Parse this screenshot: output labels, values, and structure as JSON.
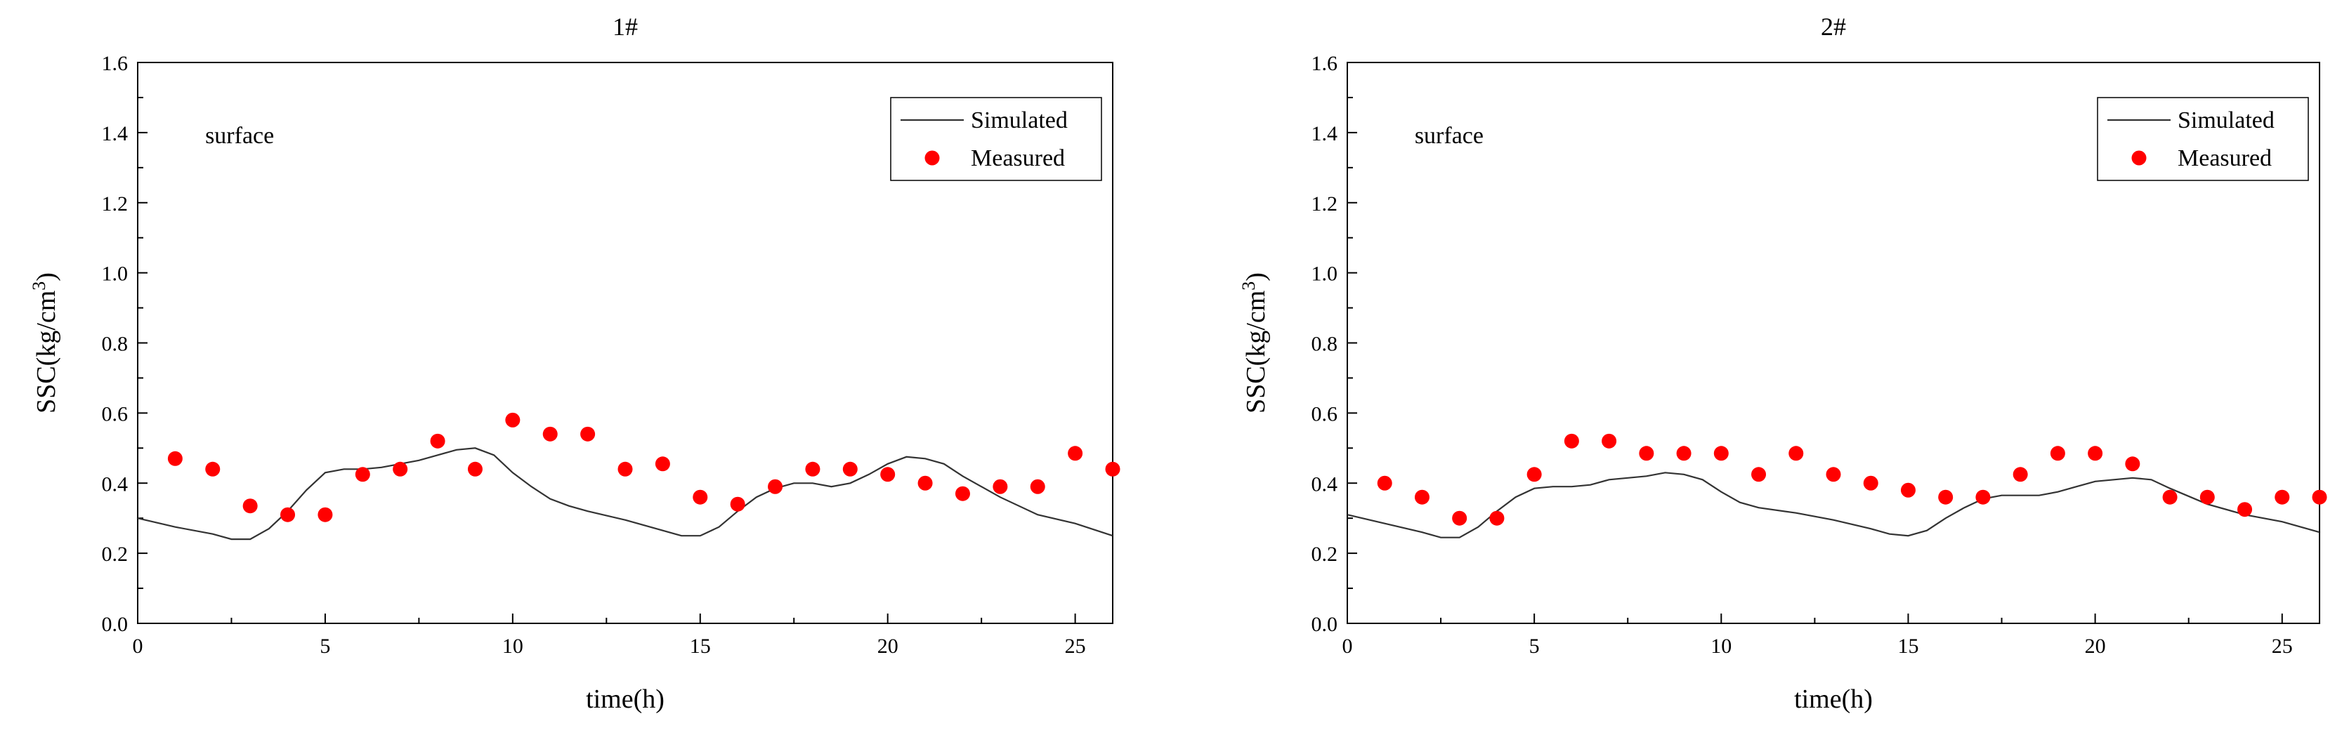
{
  "chart_data": [
    {
      "type": "line",
      "title": "1#",
      "xlabel": "time(h)",
      "ylabel_base": "SSC(kg/cm",
      "ylabel_sup": "3",
      "ylabel_tail": ")",
      "annotation": "surface",
      "xlim": [
        0,
        26
      ],
      "ylim": [
        0,
        1.6
      ],
      "xticks": [
        0,
        5,
        10,
        15,
        20,
        25
      ],
      "xtick_labels": [
        "0",
        "5",
        "10",
        "15",
        "20",
        "25"
      ],
      "yticks": [
        0,
        0.2,
        0.4,
        0.6,
        0.8,
        1.0,
        1.2,
        1.4,
        1.6
      ],
      "ytick_labels": [
        "0.0",
        "0.2",
        "0.4",
        "0.6",
        "0.8",
        "1.0",
        "1.2",
        "1.4",
        "1.6"
      ],
      "legend_position": "top-right",
      "grid": false,
      "series": [
        {
          "name": "Simulated",
          "style": "line",
          "color": "#333333",
          "x": [
            0,
            1,
            2,
            2.5,
            3,
            3.5,
            4,
            4.5,
            5,
            5.5,
            6,
            6.5,
            7,
            7.5,
            8,
            8.5,
            9,
            9.5,
            10,
            10.5,
            11,
            11.5,
            12,
            13,
            14,
            14.5,
            15,
            15.5,
            16,
            16.5,
            17,
            17.5,
            18,
            18.5,
            19,
            19.5,
            20,
            20.5,
            21,
            21.5,
            22,
            23,
            24,
            25,
            26
          ],
          "y": [
            0.3,
            0.275,
            0.255,
            0.24,
            0.24,
            0.27,
            0.32,
            0.38,
            0.43,
            0.44,
            0.44,
            0.445,
            0.455,
            0.465,
            0.48,
            0.495,
            0.5,
            0.48,
            0.43,
            0.39,
            0.355,
            0.335,
            0.32,
            0.295,
            0.265,
            0.25,
            0.25,
            0.275,
            0.32,
            0.36,
            0.385,
            0.4,
            0.4,
            0.39,
            0.4,
            0.425,
            0.455,
            0.475,
            0.47,
            0.455,
            0.42,
            0.36,
            0.31,
            0.285,
            0.25
          ]
        },
        {
          "name": "Measured",
          "style": "scatter",
          "color": "#ff0000",
          "x": [
            1,
            2,
            3,
            4,
            5,
            6,
            7,
            8,
            9,
            10,
            11,
            12,
            13,
            14,
            15,
            16,
            17,
            18,
            19,
            20,
            21,
            22,
            23,
            24,
            25,
            26
          ],
          "y": [
            0.47,
            0.44,
            0.335,
            0.31,
            0.31,
            0.425,
            0.44,
            0.52,
            0.44,
            0.58,
            0.54,
            0.54,
            0.44,
            0.455,
            0.36,
            0.34,
            0.39,
            0.44,
            0.44,
            0.425,
            0.4,
            0.37,
            0.39,
            0.39,
            0.485,
            0.44
          ]
        }
      ]
    },
    {
      "type": "line",
      "title": "2#",
      "xlabel": "time(h)",
      "ylabel_base": "SSC(kg/cm",
      "ylabel_sup": "3",
      "ylabel_tail": ")",
      "annotation": "surface",
      "xlim": [
        0,
        26
      ],
      "ylim": [
        0,
        1.6
      ],
      "xticks": [
        0,
        5,
        10,
        15,
        20,
        25
      ],
      "xtick_labels": [
        "0",
        "5",
        "10",
        "15",
        "20",
        "25"
      ],
      "yticks": [
        0,
        0.2,
        0.4,
        0.6,
        0.8,
        1.0,
        1.2,
        1.4,
        1.6
      ],
      "ytick_labels": [
        "0.0",
        "0.2",
        "0.4",
        "0.6",
        "0.8",
        "1.0",
        "1.2",
        "1.4",
        "1.6"
      ],
      "legend_position": "top-right",
      "grid": false,
      "series": [
        {
          "name": "Simulated",
          "style": "line",
          "color": "#333333",
          "x": [
            0,
            1,
            2,
            2.5,
            3,
            3.5,
            4,
            4.5,
            5,
            5.5,
            6,
            6.5,
            7,
            7.5,
            8,
            8.5,
            9,
            9.5,
            10,
            10.5,
            11,
            12,
            13,
            14,
            14.5,
            15,
            15.5,
            16,
            16.5,
            17,
            17.5,
            18,
            18.5,
            19,
            19.5,
            20,
            20.5,
            21,
            21.5,
            22,
            23,
            24,
            25,
            26
          ],
          "y": [
            0.31,
            0.285,
            0.26,
            0.245,
            0.245,
            0.275,
            0.32,
            0.36,
            0.385,
            0.39,
            0.39,
            0.395,
            0.41,
            0.415,
            0.42,
            0.43,
            0.425,
            0.41,
            0.375,
            0.345,
            0.33,
            0.315,
            0.295,
            0.27,
            0.255,
            0.25,
            0.265,
            0.3,
            0.33,
            0.355,
            0.365,
            0.365,
            0.365,
            0.375,
            0.39,
            0.405,
            0.41,
            0.415,
            0.41,
            0.385,
            0.34,
            0.31,
            0.29,
            0.26
          ]
        },
        {
          "name": "Measured",
          "style": "scatter",
          "color": "#ff0000",
          "x": [
            1,
            2,
            3,
            4,
            5,
            6,
            7,
            8,
            9,
            10,
            11,
            12,
            13,
            14,
            15,
            16,
            17,
            18,
            19,
            20,
            21,
            22,
            23,
            24,
            25,
            26
          ],
          "y": [
            0.4,
            0.36,
            0.3,
            0.3,
            0.425,
            0.52,
            0.52,
            0.485,
            0.485,
            0.485,
            0.425,
            0.485,
            0.425,
            0.4,
            0.38,
            0.36,
            0.36,
            0.425,
            0.485,
            0.485,
            0.455,
            0.36,
            0.36,
            0.325,
            0.36,
            0.36
          ]
        }
      ]
    }
  ]
}
